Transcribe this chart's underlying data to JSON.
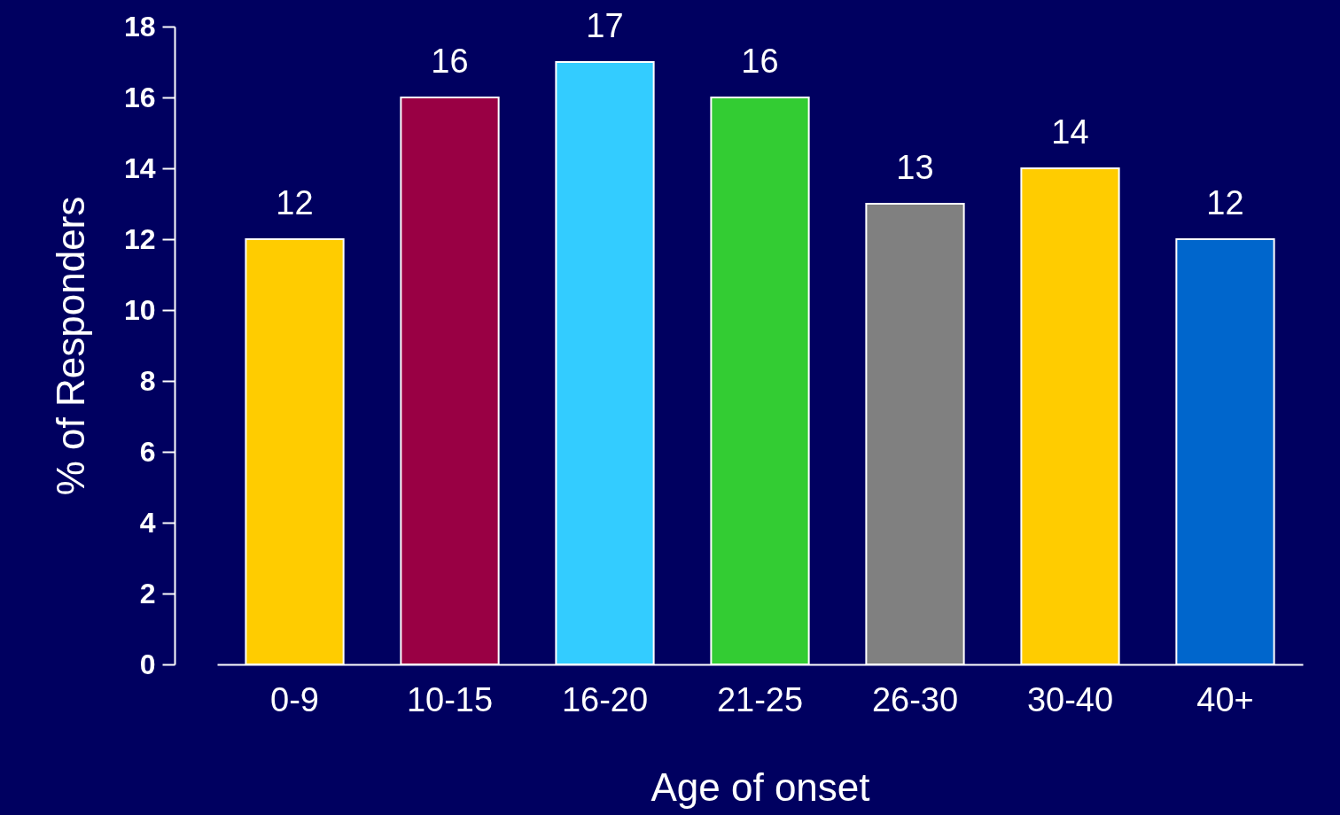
{
  "chart_data": {
    "type": "bar",
    "xlabel": "Age of onset",
    "ylabel": "% of Responders",
    "categories": [
      "0-9",
      "10-15",
      "16-20",
      "21-25",
      "26-30",
      "30-40",
      "40+"
    ],
    "values": [
      12,
      16,
      17,
      16,
      13,
      14,
      12
    ],
    "colors": [
      "#ffcc00",
      "#990044",
      "#33ccff",
      "#33cc33",
      "#808080",
      "#ffcc00",
      "#0066cc"
    ],
    "ylim": [
      0,
      18
    ],
    "yticks": [
      0,
      2,
      4,
      6,
      8,
      10,
      12,
      14,
      16,
      18
    ],
    "data_labels": true,
    "grid": false
  }
}
